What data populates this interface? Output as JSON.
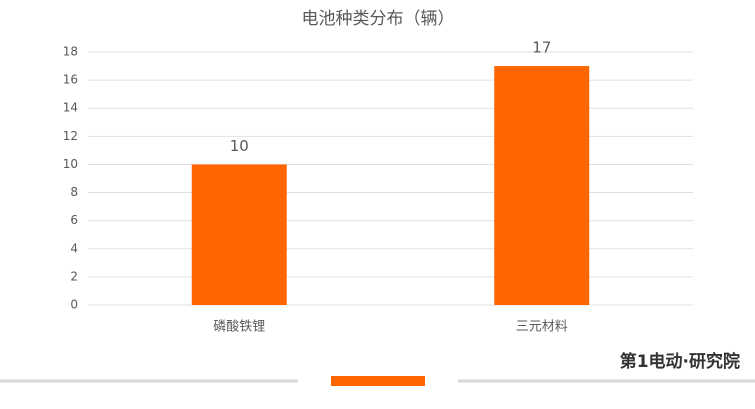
{
  "chart_data": {
    "type": "bar",
    "title": "电池种类分布（辆）",
    "categories": [
      "磷酸铁锂",
      "三元材料"
    ],
    "values": [
      10,
      17
    ],
    "color": "#ff6600",
    "ylim": [
      0,
      18
    ],
    "yticks": [
      0,
      2,
      4,
      6,
      8,
      10,
      12,
      14,
      16,
      18
    ],
    "grid": true,
    "data_labels": true
  },
  "brand": "第1电动·研究院"
}
